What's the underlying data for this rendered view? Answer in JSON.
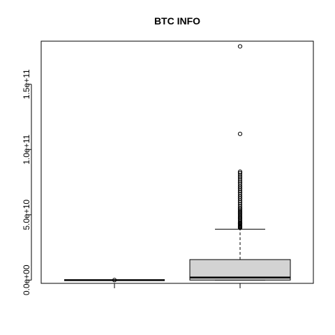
{
  "chart_data": {
    "type": "box",
    "title": "BTC INFO",
    "xlabel": "",
    "ylabel": "",
    "ylim": [
      -2500000000.0,
      183000000000.0
    ],
    "y_ticks": [
      0,
      50000000000,
      100000000000,
      150000000000
    ],
    "y_tick_labels": [
      "0.0e+00",
      "5.0e+10",
      "1.0e+11",
      "1.5e+11"
    ],
    "categories": [
      "",
      ""
    ],
    "boxes": [
      {
        "min": 0,
        "q1": 0,
        "median": 0,
        "q3": 0,
        "max": 0,
        "outliers": [
          30000000
        ]
      },
      {
        "min": 0,
        "q1": 0,
        "median": 2000000000,
        "q3": 15700000000,
        "max": 39000000000,
        "outliers": [
          40000000000,
          40500000000,
          41000000000,
          41500000000,
          42000000000,
          42500000000,
          43000000000,
          43500000000,
          44000000000,
          45000000000,
          46000000000,
          47000000000,
          48000000000,
          49000000000,
          50000000000,
          51000000000,
          52000000000,
          53000000000,
          54000000000,
          55000000000,
          56500000000,
          58000000000,
          59500000000,
          61000000000,
          62500000000,
          64000000000,
          65500000000,
          67000000000,
          68500000000,
          70000000000,
          71500000000,
          73000000000,
          74500000000,
          76000000000,
          77500000000,
          79000000000,
          80500000000,
          82000000000,
          83000000000,
          112000000000,
          179000000000
        ]
      }
    ],
    "box_fill": "#d3d3d3",
    "line_color": "#000000",
    "grid": false
  }
}
